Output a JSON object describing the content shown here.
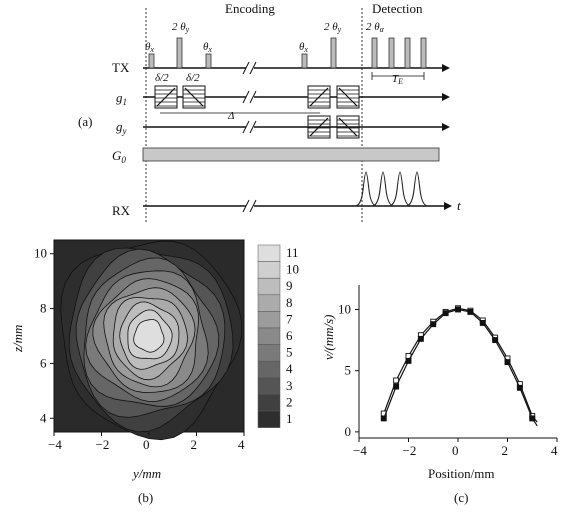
{
  "figure": {
    "panel_a": {
      "label": "(a)",
      "section_encoding": "Encoding",
      "section_detection": "Detection",
      "rows": [
        "TX",
        "g1",
        "gy",
        "G0",
        "RX"
      ],
      "pulse_labels": [
        "θx",
        "2θy",
        "θx",
        "θx",
        "2θy",
        "2θα"
      ],
      "delta_half_labels": [
        "δ/2",
        "δ/2"
      ],
      "big_delta": "Δ",
      "te_label": "TE",
      "time_label": "t"
    },
    "panel_b": {
      "label": "(b)",
      "xlabel": "y/mm",
      "ylabel": "z/mm",
      "xticks": [
        "−4",
        "−2",
        "0",
        "2",
        "4"
      ],
      "yticks": [
        "4",
        "6",
        "8",
        "10"
      ],
      "colorbar": [
        "11",
        "10",
        "9",
        "8",
        "7",
        "6",
        "5",
        "4",
        "3",
        "2",
        "1"
      ]
    },
    "panel_c": {
      "label": "(c)",
      "xlabel": "Position/mm",
      "ylabel": "v/(mm/s)",
      "xticks": [
        "−4",
        "−2",
        "0",
        "2",
        "4"
      ],
      "yticks": [
        "0",
        "5",
        "10"
      ]
    }
  },
  "chart_data": [
    {
      "type": "heatmap",
      "xlabel": "y/mm",
      "ylabel": "z/mm",
      "xlim": [
        -4,
        4
      ],
      "ylim": [
        3.5,
        10.5
      ],
      "levels": [
        1,
        2,
        3,
        4,
        5,
        6,
        7,
        8,
        9,
        10,
        11
      ],
      "center": [
        0,
        7
      ],
      "grid": false
    },
    {
      "type": "line",
      "xlabel": "Position/mm",
      "ylabel": "v/(mm/s)",
      "xlim": [
        -4,
        4
      ],
      "ylim": [
        -0.5,
        12
      ],
      "x": [
        -3.0,
        -2.5,
        -2.0,
        -1.5,
        -1.0,
        -0.5,
        0.0,
        0.5,
        1.0,
        1.5,
        2.0,
        2.5,
        3.0
      ],
      "series": [
        {
          "marker": "square-open",
          "values": [
            1.5,
            4.2,
            6.2,
            7.9,
            9.0,
            9.8,
            10.1,
            9.9,
            9.1,
            7.7,
            6.0,
            3.9,
            1.3
          ]
        },
        {
          "marker": "square-filled",
          "values": [
            1.1,
            3.7,
            5.8,
            7.6,
            8.8,
            9.7,
            10.0,
            9.8,
            8.9,
            7.5,
            5.7,
            3.6,
            1.1
          ]
        }
      ],
      "grid": false
    }
  ]
}
